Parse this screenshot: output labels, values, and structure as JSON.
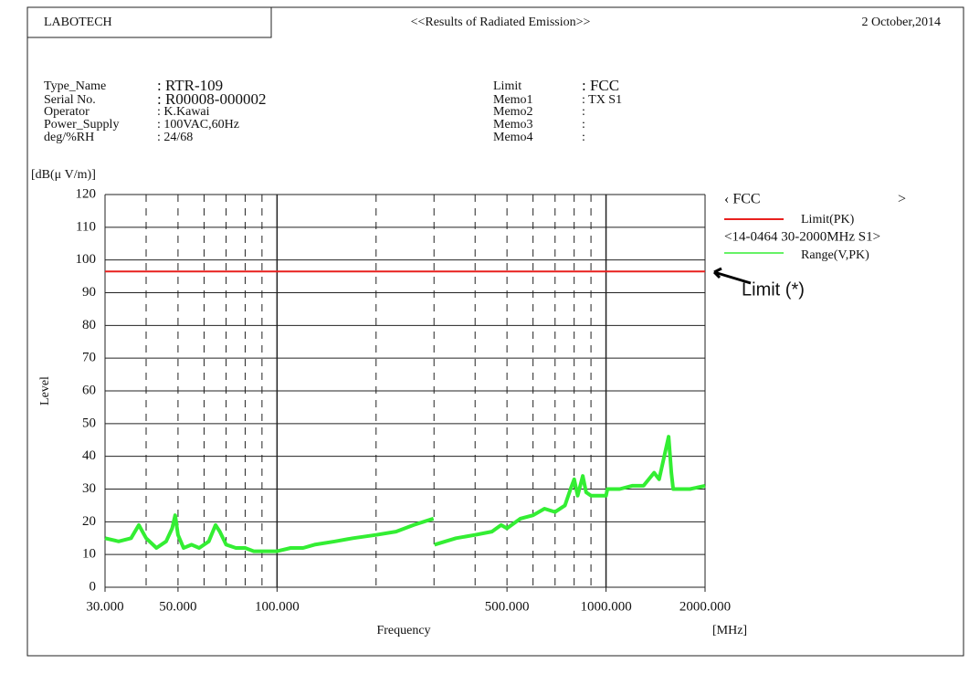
{
  "header": {
    "company": "LABOTECH",
    "title": "<<Results of Radiated Emission>>",
    "date": "2 October,2014"
  },
  "info": {
    "left": [
      [
        "Type_Name",
        ": RTR-109"
      ],
      [
        "Serial No.",
        ": R00008-000002"
      ],
      [
        "Operator",
        ": K.Kawai"
      ],
      [
        "Power_Supply",
        ": 100VAC,60Hz"
      ],
      [
        "deg/%RH",
        ": 24/68"
      ]
    ],
    "right": [
      [
        "Limit",
        ": FCC"
      ],
      [
        "Memo1",
        ": TX S1"
      ],
      [
        "Memo2",
        ":"
      ],
      [
        "Memo3",
        ":"
      ],
      [
        "Memo4",
        ":"
      ]
    ]
  },
  "chart_data": {
    "type": "line",
    "y_unit": "[dB(μ V/m)]",
    "y_label": "Level",
    "x_label": "Frequency",
    "x_unit": "[MHz]",
    "log_x": true,
    "xlim": [
      30,
      2000
    ],
    "ylim": [
      0,
      120
    ],
    "yticks": [
      0,
      10,
      20,
      30,
      40,
      50,
      60,
      70,
      80,
      90,
      100,
      110,
      120
    ],
    "xticks": [
      {
        "value": 30,
        "label": "30.000"
      },
      {
        "value": 50,
        "label": "50.000"
      },
      {
        "value": 100,
        "label": "100.000"
      },
      {
        "value": 500,
        "label": "500.000"
      },
      {
        "value": 1000,
        "label": "1000.000"
      },
      {
        "value": 2000,
        "label": "2000.000"
      }
    ],
    "x_major_grid": [
      100,
      1000
    ],
    "x_minor_grid": [
      40,
      50,
      60,
      70,
      80,
      90,
      200,
      300,
      400,
      500,
      600,
      700,
      800,
      900
    ],
    "legend_title": "‹ FCC",
    "legend_close": ">",
    "legend_group": "<14-0464 30-2000MHz S1>",
    "limit": {
      "name": "Limit(PK)",
      "color": "#e8201e",
      "value": 96.5
    },
    "annotation": "Limit (*)",
    "series": [
      {
        "name": "Range(V,PK)",
        "color": "#33ee33",
        "x": [
          30,
          33,
          36,
          38,
          40,
          43,
          46,
          48,
          49,
          50,
          52,
          55,
          58,
          62,
          65,
          67,
          70,
          75,
          80,
          85,
          90,
          95,
          100,
          110,
          120,
          130,
          150,
          170,
          200,
          230,
          260,
          299,
          300,
          301,
          350,
          400,
          450,
          480,
          500,
          550,
          600,
          650,
          700,
          750,
          780,
          800,
          820,
          850,
          870,
          900,
          1000,
          1010,
          1100,
          1200,
          1300,
          1400,
          1450,
          1550,
          1580,
          1600,
          1800,
          2000
        ],
        "values": [
          15,
          14,
          15,
          19,
          15,
          12,
          14,
          18,
          22,
          16,
          12,
          13,
          12,
          14,
          19,
          17,
          13,
          12,
          12,
          11,
          11,
          11,
          11,
          12,
          12,
          13,
          14,
          15,
          16,
          17,
          19,
          21,
          null,
          13,
          15,
          16,
          17,
          19,
          18,
          21,
          22,
          24,
          23,
          25,
          30,
          33,
          28,
          34,
          29,
          28,
          28,
          30,
          30,
          31,
          31,
          35,
          33,
          46,
          35,
          30,
          30,
          31
        ]
      }
    ]
  }
}
